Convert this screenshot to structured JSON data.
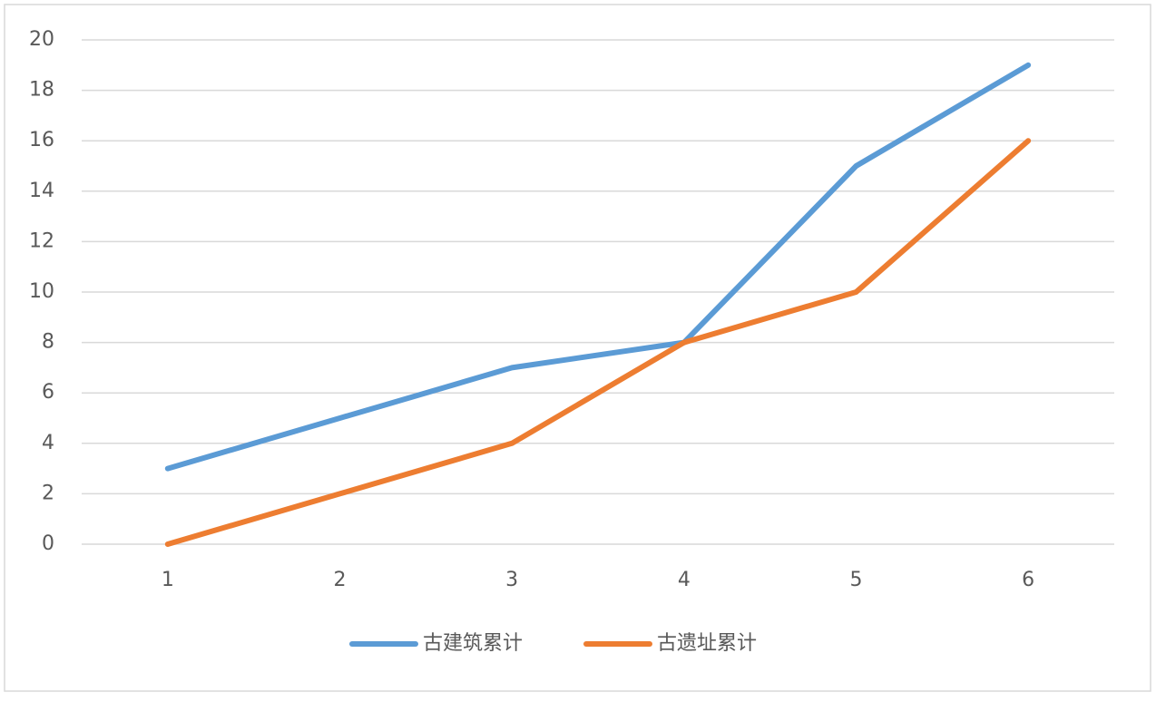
{
  "chart_data": {
    "type": "line",
    "categories": [
      "1",
      "2",
      "3",
      "4",
      "5",
      "6"
    ],
    "series": [
      {
        "name": "古建筑累计",
        "color": "#5b9bd5",
        "values": [
          3,
          5,
          7,
          8,
          15,
          19
        ]
      },
      {
        "name": "古遗址累计",
        "color": "#ed7d31",
        "values": [
          0,
          2,
          4,
          8,
          10,
          16
        ]
      }
    ],
    "ylim": [
      0,
      20
    ],
    "yticks": [
      0,
      2,
      4,
      6,
      8,
      10,
      12,
      14,
      16,
      18,
      20
    ],
    "grid": true,
    "legend": "bottom"
  }
}
